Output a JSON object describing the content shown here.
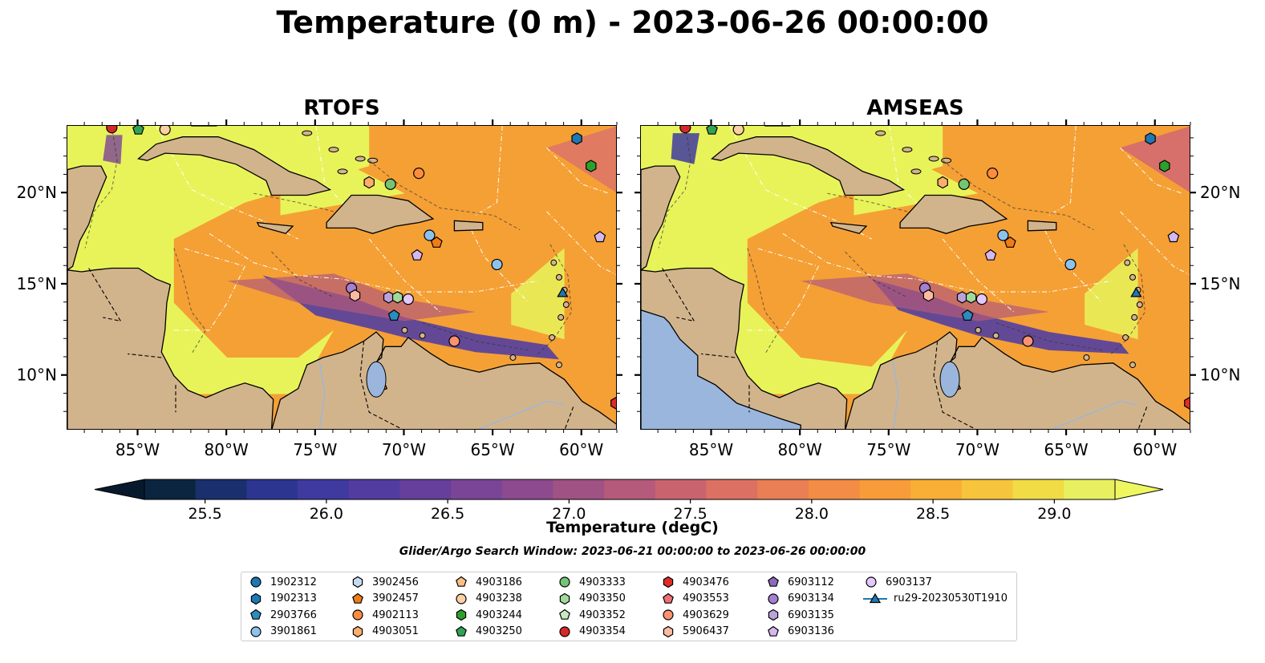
{
  "title": "Temperature (0 m) - 2023-06-26 00:00:00",
  "panels": [
    {
      "title": "RTOFS"
    },
    {
      "title": "AMSEAS"
    }
  ],
  "axes": {
    "lon_labels": [
      "85°W",
      "80°W",
      "75°W",
      "70°W",
      "65°W",
      "60°W"
    ],
    "lon_values": [
      -85,
      -80,
      -75,
      -70,
      -65,
      -60
    ],
    "lat_labels": [
      "20°N",
      "15°N",
      "10°N"
    ],
    "lat_values": [
      20,
      15,
      10
    ],
    "lon_range": [
      -89,
      -58
    ],
    "lat_range": [
      7,
      23.7
    ]
  },
  "colorbar": {
    "label": "Temperature (degC)",
    "ticks": [
      "25.5",
      "26.0",
      "26.5",
      "27.0",
      "27.5",
      "28.0",
      "28.5",
      "29.0"
    ],
    "tick_values": [
      25.5,
      26.0,
      26.5,
      27.0,
      27.5,
      28.0,
      28.5,
      29.0
    ],
    "range": [
      25.25,
      29.25
    ],
    "extend": "both",
    "colors": [
      "#0b2540",
      "#1a2f6e",
      "#2c3691",
      "#3f3aa0",
      "#523c9f",
      "#653f9b",
      "#7a4596",
      "#8d4a8e",
      "#a05284",
      "#b55a7a",
      "#c9646f",
      "#db7063",
      "#ea7e54",
      "#f38c45",
      "#f89c3a",
      "#f9af35",
      "#f7c53b",
      "#f1dc45",
      "#e8f060"
    ]
  },
  "search_window": "Glider/Argo Search Window: 2023-06-21 00:00:00 to 2023-06-26 00:00:00",
  "colors": {
    "land": "#d2b48c",
    "pacific_amseas": "#9ab6dc",
    "sea_warm": "#f5a035",
    "sea_hot": "#e8f35a",
    "sea_cool": "#533fa0"
  },
  "legend": [
    {
      "label": "1902312",
      "shape": "circle",
      "color": "#1f77b4"
    },
    {
      "label": "1902313",
      "shape": "hexagon",
      "color": "#1f77b4"
    },
    {
      "label": "2903766",
      "shape": "pentagon",
      "color": "#2b8cbe"
    },
    {
      "label": "3901861",
      "shape": "circle",
      "color": "#8ec2ee"
    },
    {
      "label": "3902456",
      "shape": "hexagon",
      "color": "#c6dbef"
    },
    {
      "label": "3902457",
      "shape": "pentagon",
      "color": "#f07c17"
    },
    {
      "label": "4902113",
      "shape": "circle",
      "color": "#fd8d3c"
    },
    {
      "label": "4903051",
      "shape": "hexagon",
      "color": "#fdae6b"
    },
    {
      "label": "4903186",
      "shape": "pentagon",
      "color": "#fdbe85"
    },
    {
      "label": "4903238",
      "shape": "circle",
      "color": "#fdd0a2"
    },
    {
      "label": "4903244",
      "shape": "hexagon",
      "color": "#2ca02c"
    },
    {
      "label": "4903250",
      "shape": "pentagon",
      "color": "#31a354"
    },
    {
      "label": "4903333",
      "shape": "circle",
      "color": "#74c476"
    },
    {
      "label": "4903350",
      "shape": "hexagon",
      "color": "#a1d99b"
    },
    {
      "label": "4903352",
      "shape": "pentagon",
      "color": "#c7e9c0"
    },
    {
      "label": "4903354",
      "shape": "circle",
      "color": "#d62728"
    },
    {
      "label": "4903476",
      "shape": "hexagon",
      "color": "#de2d26"
    },
    {
      "label": "4903553",
      "shape": "pentagon",
      "color": "#ef6f74"
    },
    {
      "label": "4903629",
      "shape": "circle",
      "color": "#fc9272"
    },
    {
      "label": "5906437",
      "shape": "hexagon",
      "color": "#fcbba1"
    },
    {
      "label": "6903112",
      "shape": "pentagon",
      "color": "#8e6bb8"
    },
    {
      "label": "6903134",
      "shape": "circle",
      "color": "#a57fd0"
    },
    {
      "label": "6903135",
      "shape": "hexagon",
      "color": "#bca2dc"
    },
    {
      "label": "6903136",
      "shape": "pentagon",
      "color": "#d6b8f0"
    },
    {
      "label": "6903137",
      "shape": "circle",
      "color": "#e5c8fb"
    },
    {
      "label": "ru29-20230530T1910",
      "shape": "triangle-line",
      "color": "#1f77b4"
    }
  ],
  "platforms": [
    {
      "id": "4903554-a",
      "lon": -86.5,
      "lat": 23.6,
      "shape": "circle",
      "color": "#d62728"
    },
    {
      "id": "4903250",
      "lon": -85.0,
      "lat": 23.5,
      "shape": "pentagon",
      "color": "#31a354"
    },
    {
      "id": "4903238",
      "lon": -83.5,
      "lat": 23.5,
      "shape": "circle",
      "color": "#fdd0a2"
    },
    {
      "id": "1902313",
      "lon": -60.3,
      "lat": 23.0,
      "shape": "hexagon",
      "color": "#1f77b4"
    },
    {
      "id": "4903244",
      "lon": -59.5,
      "lat": 21.5,
      "shape": "hexagon",
      "color": "#2ca02c"
    },
    {
      "id": "4902113",
      "lon": -69.2,
      "lat": 21.1,
      "shape": "circle",
      "color": "#fd8d3c"
    },
    {
      "id": "4903051",
      "lon": -72.0,
      "lat": 20.6,
      "shape": "hexagon",
      "color": "#fdae6b"
    },
    {
      "id": "4903333",
      "lon": -70.8,
      "lat": 20.5,
      "shape": "circle",
      "color": "#74c476"
    },
    {
      "id": "6903136",
      "lon": -59.0,
      "lat": 17.6,
      "shape": "pentagon",
      "color": "#d6b8f0"
    },
    {
      "id": "3901861-a",
      "lon": -68.6,
      "lat": 17.7,
      "shape": "circle",
      "color": "#8ec2ee"
    },
    {
      "id": "3902457",
      "lon": -68.2,
      "lat": 17.3,
      "shape": "pentagon",
      "color": "#f07c17"
    },
    {
      "id": "6903112",
      "lon": -69.3,
      "lat": 16.6,
      "shape": "pentagon",
      "color": "#d6b8f0"
    },
    {
      "id": "3901861-b",
      "lon": -64.8,
      "lat": 16.1,
      "shape": "circle",
      "color": "#8ec2ee"
    },
    {
      "id": "6903134",
      "lon": -73.0,
      "lat": 14.8,
      "shape": "circle",
      "color": "#a57fd0"
    },
    {
      "id": "5906437",
      "lon": -72.8,
      "lat": 14.4,
      "shape": "hexagon",
      "color": "#fcbba1"
    },
    {
      "id": "6903135",
      "lon": -70.9,
      "lat": 14.3,
      "shape": "hexagon",
      "color": "#bca2dc"
    },
    {
      "id": "4903350",
      "lon": -70.4,
      "lat": 14.3,
      "shape": "hexagon",
      "color": "#a1d99b"
    },
    {
      "id": "6903137",
      "lon": -69.8,
      "lat": 14.2,
      "shape": "circle",
      "color": "#e5c8fb"
    },
    {
      "id": "2903766",
      "lon": -70.6,
      "lat": 13.3,
      "shape": "pentagon",
      "color": "#2b8cbe"
    },
    {
      "id": "4903629",
      "lon": -67.2,
      "lat": 11.9,
      "shape": "circle",
      "color": "#fc9272"
    },
    {
      "id": "ru29-20230530T1910",
      "lon": -61.1,
      "lat": 14.5,
      "shape": "triangle",
      "color": "#1f77b4"
    },
    {
      "id": "4903476",
      "lon": -58.1,
      "lat": 8.5,
      "shape": "hexagon",
      "color": "#de2d26"
    }
  ]
}
